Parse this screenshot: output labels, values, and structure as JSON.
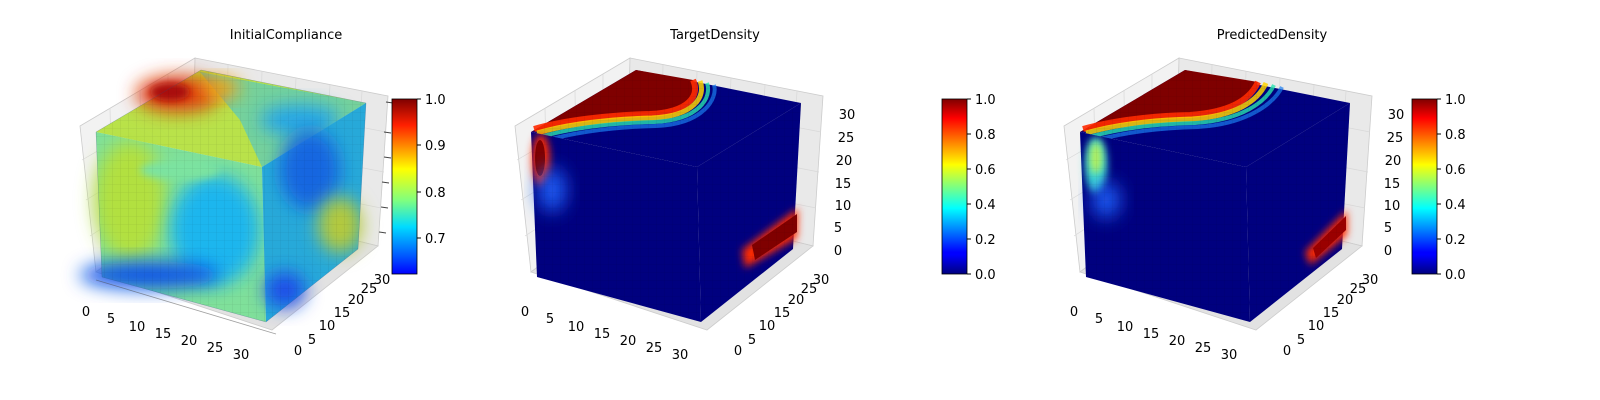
{
  "chart_data": [
    {
      "type": "heatmap",
      "subtype": "3d-voxel",
      "title": "InitialCompliance",
      "axes": {
        "x": {
          "ticks": [
            0,
            5,
            10,
            15,
            20,
            25,
            30
          ],
          "range": [
            0,
            32
          ]
        },
        "y": {
          "ticks": [
            0,
            5,
            10,
            15,
            20,
            25,
            30
          ],
          "range": [
            0,
            32
          ]
        },
        "z": {
          "ticks": [],
          "range": [
            0,
            32
          ]
        }
      },
      "colorbar": {
        "colormap": "jet",
        "range": [
          0.63,
          1.0
        ],
        "ticks": [
          "0.7",
          "0.8",
          "0.9",
          "1.0"
        ]
      },
      "grid": true,
      "description_values": {
        "top_face_hotspot": 1.0,
        "front_face_mean": 0.8,
        "right_face_mean": 0.76,
        "front_bottom_min": 0.66
      }
    },
    {
      "type": "heatmap",
      "subtype": "3d-voxel",
      "title": "TargetDensity",
      "axes": {
        "x": {
          "ticks": [
            0,
            5,
            10,
            15,
            20,
            25,
            30
          ],
          "range": [
            0,
            32
          ]
        },
        "y": {
          "ticks": [
            0,
            5,
            10,
            15,
            20,
            25,
            30
          ],
          "range": [
            0,
            32
          ]
        },
        "z": {
          "ticks": [
            0,
            5,
            10,
            15,
            20,
            25,
            30
          ],
          "range": [
            0,
            32
          ]
        }
      },
      "colorbar": {
        "colormap": "jet",
        "range": [
          0.0,
          1.0
        ],
        "ticks": [
          "0.0",
          "0.2",
          "0.4",
          "0.6",
          "0.8",
          "1.0"
        ]
      },
      "grid": true
    },
    {
      "type": "heatmap",
      "subtype": "3d-voxel",
      "title": "PredictedDensity",
      "axes": {
        "x": {
          "ticks": [
            0,
            5,
            10,
            15,
            20,
            25,
            30
          ],
          "range": [
            0,
            32
          ]
        },
        "y": {
          "ticks": [
            0,
            5,
            10,
            15,
            20,
            25,
            30
          ],
          "range": [
            0,
            32
          ]
        },
        "z": {
          "ticks": [
            0,
            5,
            10,
            15,
            20,
            25,
            30
          ],
          "range": [
            0,
            32
          ]
        }
      },
      "colorbar": {
        "colormap": "jet",
        "range": [
          0.0,
          1.0
        ],
        "ticks": [
          "0.0",
          "0.2",
          "0.4",
          "0.6",
          "0.8",
          "1.0"
        ]
      },
      "grid": true
    }
  ],
  "colors": {
    "jet_low": "#00007f",
    "jet_mid": "#7fff7f",
    "jet_high": "#7f0000"
  }
}
